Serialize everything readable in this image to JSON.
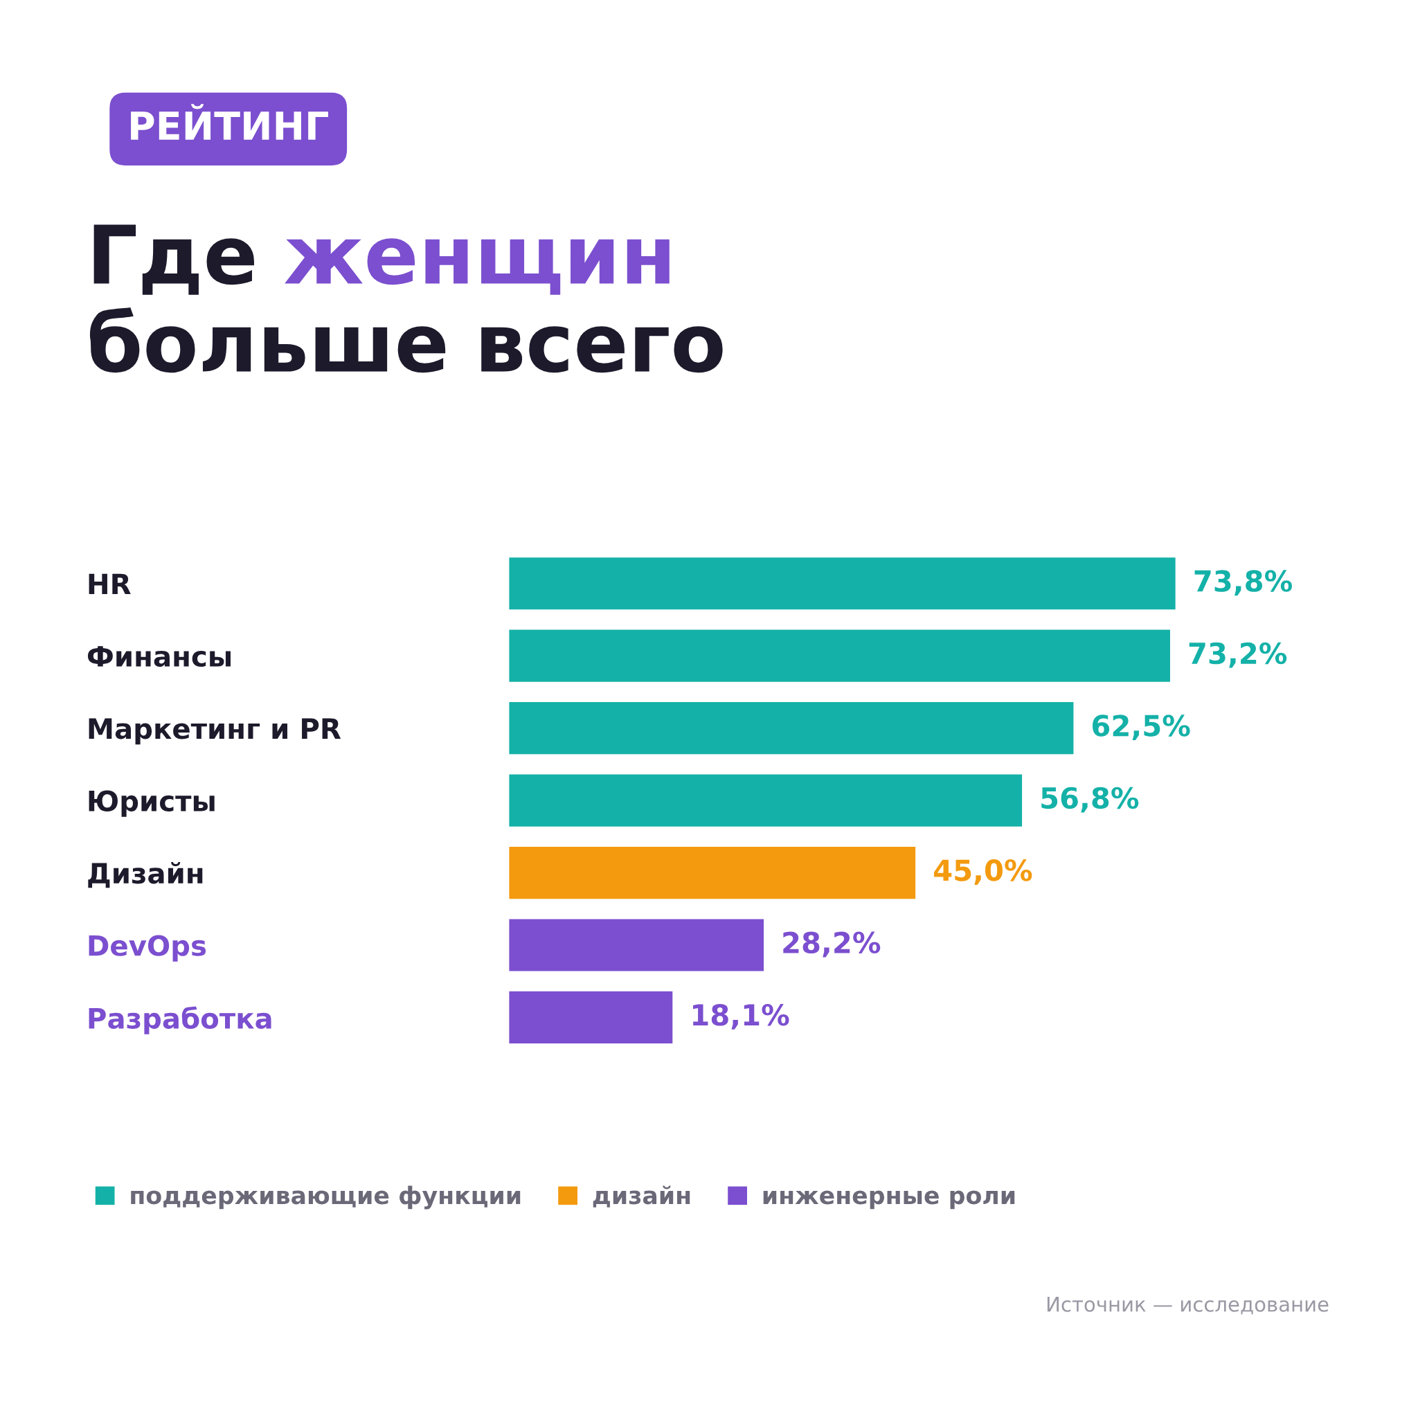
{
  "chart_data": {
    "type": "bar",
    "orientation": "horizontal",
    "title": "Где женщин\nбольше всего",
    "categories": [
      "HR",
      "Финансы",
      "Маркетинг и PR",
      "Юристы",
      "Дизайн",
      "DevOps",
      "Разработка"
    ],
    "series": [
      {
        "name": "поддерживающие функции",
        "color": "#14b1a8",
        "values": [
          73.8,
          73.2,
          62.5,
          56.8,
          null,
          null,
          null
        ],
        "value_labels": [
          "73,8%",
          "73,2%",
          "62,5%",
          "56,8%",
          null,
          null,
          null
        ]
      },
      {
        "name": "дизайн",
        "color": "#f39a0f",
        "values": [
          null,
          null,
          null,
          null,
          45.0,
          null,
          null
        ],
        "value_labels": [
          null,
          null,
          null,
          null,
          "45,0%",
          null,
          null
        ]
      },
      {
        "name": "инженерные роли",
        "color": "#7b4fcf",
        "values": [
          null,
          null,
          null,
          null,
          null,
          28.2,
          18.1
        ],
        "value_labels": [
          null,
          null,
          null,
          null,
          null,
          "28,2%",
          "18,1%"
        ]
      }
    ],
    "legend": "bottom left",
    "annotations": [
      "РЕЙТИНГ",
      "Источник — исследование"
    ]
  }
}
